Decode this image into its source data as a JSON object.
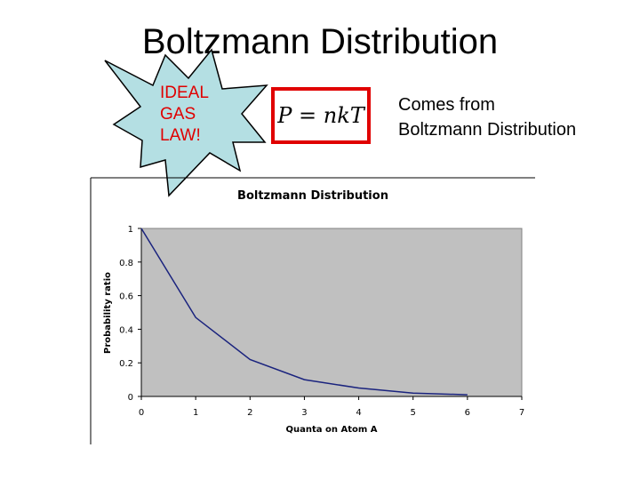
{
  "slide": {
    "title": "Boltzmann Distribution",
    "starburst": [
      "IDEAL",
      "GAS",
      "LAW!"
    ],
    "formula": "P = nkT",
    "caption": [
      "Comes from",
      "Boltzmann Distribution"
    ]
  },
  "chart_data": {
    "type": "line",
    "title": "Boltzmann Distribution",
    "x_label": "Quanta on Atom A",
    "y_label": "Probability ratio",
    "x": [
      0,
      1,
      2,
      3,
      4,
      5,
      6
    ],
    "series": [
      {
        "name": "Probability ratio",
        "color": "#1a237e",
        "values": [
          1,
          0.47,
          0.22,
          0.1,
          0.05,
          0.02,
          0.01
        ]
      }
    ],
    "xlim": [
      0,
      7
    ],
    "xticks": [
      0,
      1,
      2,
      3,
      4,
      5,
      6,
      7
    ],
    "ylim": [
      0,
      1
    ],
    "yticks": [
      0,
      0.2,
      0.4,
      0.6,
      0.8,
      1
    ],
    "plot_background": "#c0c0c0"
  }
}
